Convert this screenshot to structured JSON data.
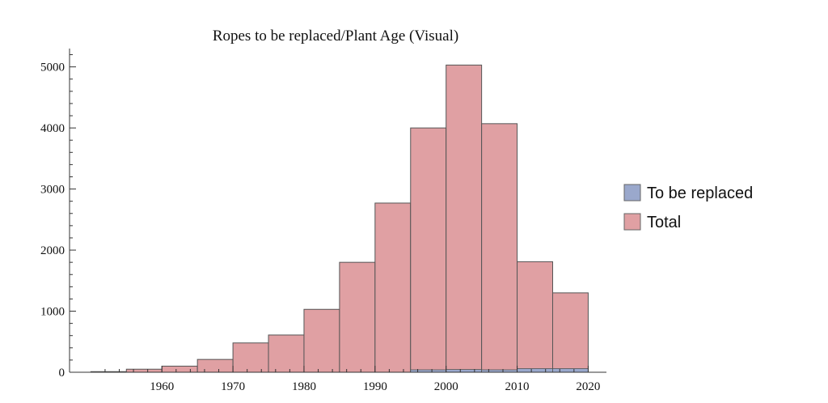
{
  "chart_data": {
    "type": "bar",
    "title": "Ropes to be replaced/Plant Age (Visual)",
    "xlabel": "",
    "ylabel": "",
    "bin_width": 5,
    "bin_starts": [
      1950,
      1955,
      1960,
      1965,
      1970,
      1975,
      1980,
      1985,
      1990,
      1995,
      2000,
      2005,
      2010,
      2015
    ],
    "series": [
      {
        "name": "To be replaced",
        "color": "#9aa8cc",
        "values": [
          0,
          0,
          0,
          0,
          0,
          0,
          0,
          0,
          0,
          40,
          45,
          40,
          60,
          60
        ]
      },
      {
        "name": "Total",
        "color": "#e0a0a3",
        "values": [
          10,
          50,
          100,
          210,
          480,
          610,
          1030,
          1800,
          2770,
          4000,
          5030,
          4070,
          1810,
          1300
        ]
      }
    ],
    "xlim": [
      1947,
      2022
    ],
    "ylim": [
      0,
      5300
    ],
    "x_ticks": [
      1960,
      1970,
      1980,
      1990,
      2000,
      2010,
      2020
    ],
    "x_tick_labels": [
      "1960",
      "1970",
      "1980",
      "1990",
      "2000",
      "2010",
      "2020"
    ],
    "y_ticks": [
      0,
      1000,
      2000,
      3000,
      4000,
      5000
    ],
    "y_tick_labels": [
      "0",
      "1000",
      "2000",
      "3000",
      "4000",
      "5000"
    ],
    "legend": {
      "placement": "right",
      "entries": [
        "To be replaced",
        "Total"
      ]
    },
    "grid": false
  }
}
